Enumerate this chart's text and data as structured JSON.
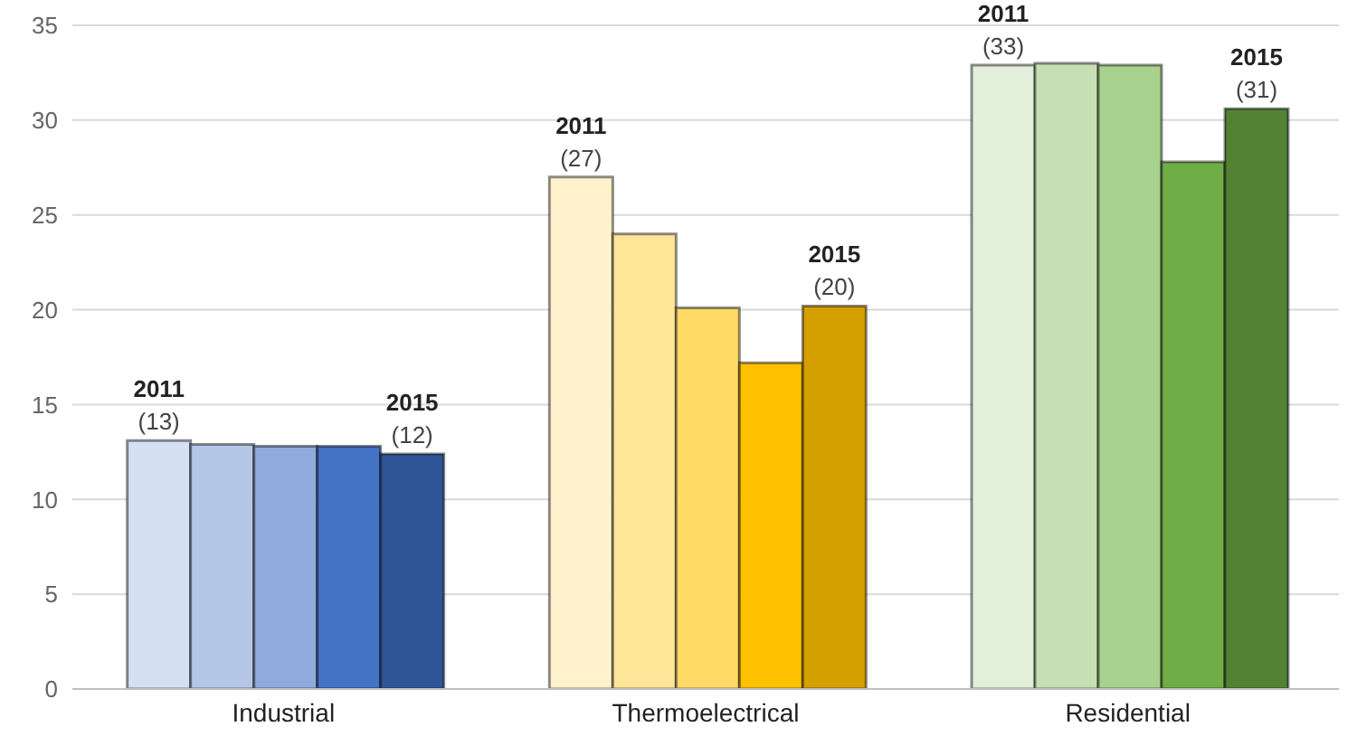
{
  "chart_data": {
    "type": "bar",
    "categories": [
      "Industrial",
      "Thermoelectrical",
      "Residential"
    ],
    "series": [
      {
        "name": "2011",
        "colors": [
          "#d6e0f3",
          "#fff2cc",
          "#e2efda"
        ],
        "values": [
          13.1,
          27,
          32.9
        ],
        "value_labels": [
          "(13)",
          "(27)",
          "(33)"
        ]
      },
      {
        "colors": [
          "#b4c7e7",
          "#ffe699",
          "#c6e0b4"
        ],
        "values": [
          12.9,
          24,
          33
        ]
      },
      {
        "colors": [
          "#8faadc",
          "#ffd966",
          "#a9d18e"
        ],
        "values": [
          12.8,
          20.1,
          32.9
        ]
      },
      {
        "colors": [
          "#4472c4",
          "#ffc000",
          "#70ad47"
        ],
        "values": [
          12.8,
          17.2,
          27.8
        ]
      },
      {
        "name": "2015",
        "colors": [
          "#2f5597",
          "#d4a000",
          "#548235"
        ],
        "values": [
          12.4,
          20.2,
          30.6
        ],
        "value_labels": [
          "(12)",
          "(20)",
          "(31)"
        ]
      }
    ],
    "ylim": [
      0,
      35
    ],
    "yticks": [
      0,
      5,
      10,
      15,
      20,
      25,
      30,
      35
    ],
    "grid": "y",
    "legend": false
  }
}
